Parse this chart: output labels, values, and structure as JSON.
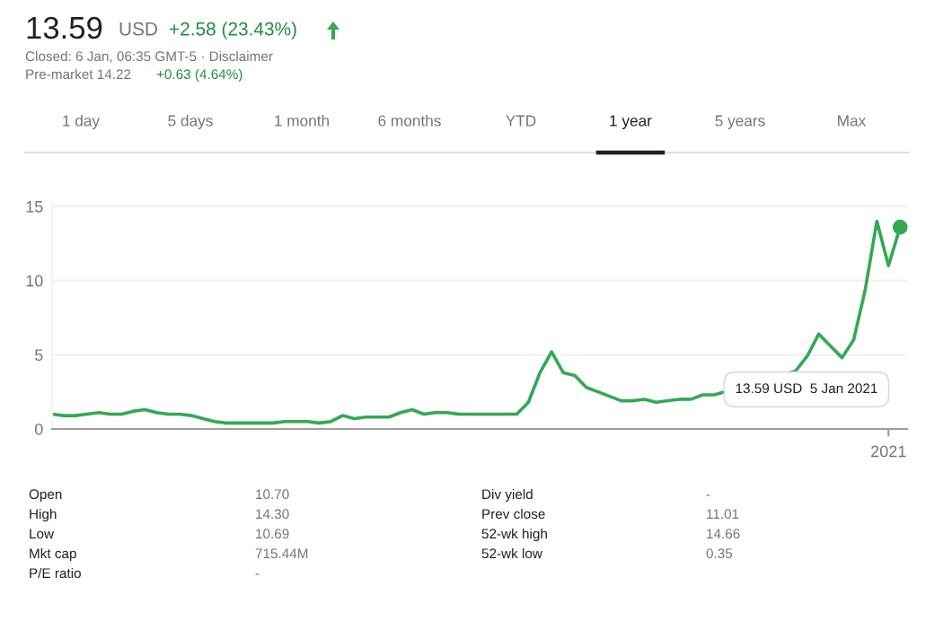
{
  "chart_data": {
    "type": "line",
    "categories": [
      null,
      null,
      null,
      null,
      null,
      null,
      null,
      null,
      null,
      null,
      null,
      null,
      null,
      null,
      null,
      null,
      null,
      null,
      null,
      null,
      null,
      null,
      null,
      null,
      null,
      null,
      null,
      null,
      null,
      null,
      null,
      null,
      null,
      null,
      null,
      null,
      null,
      null,
      null,
      null,
      null,
      null,
      null,
      null,
      null,
      null,
      null,
      null,
      null,
      null,
      null,
      null,
      null,
      null,
      null,
      null,
      null,
      null,
      null,
      null,
      null,
      null,
      null,
      null,
      null,
      null,
      null,
      null,
      null,
      null,
      null,
      null,
      "2021",
      null
    ],
    "series": [
      {
        "color": "#34a853",
        "values": [
          1.0,
          0.9,
          0.9,
          1.0,
          1.1,
          1.0,
          1.0,
          1.2,
          1.3,
          1.1,
          1.0,
          1.0,
          0.9,
          0.7,
          0.5,
          0.4,
          0.4,
          0.4,
          0.4,
          0.4,
          0.5,
          0.5,
          0.5,
          0.4,
          0.5,
          0.9,
          0.7,
          0.8,
          0.8,
          0.8,
          1.1,
          1.3,
          1.0,
          1.1,
          1.1,
          1.0,
          1.0,
          1.0,
          1.0,
          1.0,
          1.0,
          1.8,
          3.8,
          5.2,
          3.8,
          3.6,
          2.8,
          2.5,
          2.2,
          1.9,
          1.9,
          2.0,
          1.8,
          1.9,
          2.0,
          2.0,
          2.3,
          2.3,
          null,
          null,
          null,
          null,
          null,
          null,
          3.9,
          4.9,
          6.4,
          5.6,
          4.8,
          6.0,
          9.4,
          14.0,
          11.0,
          13.6
        ]
      }
    ],
    "ylim": [
      0,
      15.3
    ],
    "yticks": [
      0,
      5,
      10,
      15
    ],
    "grid": "y",
    "legend": false,
    "annotations": [
      "13.59",
      "USD",
      "+2.58 (23.43%)",
      "Closed: 6 Jan, 06:35 GMT-5 · Disclaimer",
      "Pre-market 14.22",
      "+0.63 (4.64%)",
      "1 day",
      "5 days",
      "1 month",
      "6 months",
      "YTD",
      "1 year",
      "5 years",
      "Max",
      "13.59 USD  5 Jan 2021",
      "Open",
      "10.70",
      "High",
      "14.30",
      "Low",
      "10.69",
      "Mkt cap",
      "715.44M",
      "P/E ratio",
      "-",
      "Div yield",
      "-",
      "Prev close",
      "11.01",
      "52-wk high",
      "14.66",
      "52-wk low",
      "0.35"
    ]
  }
}
